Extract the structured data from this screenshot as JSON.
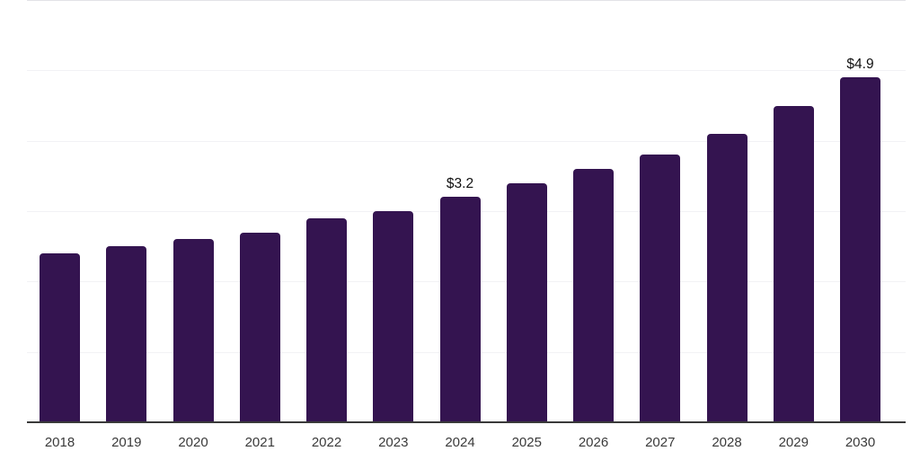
{
  "chart_data": {
    "type": "bar",
    "title": "",
    "xlabel": "",
    "ylabel": "",
    "categories": [
      "2018",
      "2019",
      "2020",
      "2021",
      "2022",
      "2023",
      "2024",
      "2025",
      "2026",
      "2027",
      "2028",
      "2029",
      "2030"
    ],
    "values": [
      2.4,
      2.5,
      2.6,
      2.7,
      2.9,
      3.0,
      3.2,
      3.4,
      3.6,
      3.8,
      4.1,
      4.5,
      4.9
    ],
    "bar_labels": {
      "2024": "$3.2",
      "2030": "$4.9"
    },
    "ylim": [
      0,
      6
    ],
    "gridline_values": [
      1,
      2,
      3,
      4,
      5,
      6
    ],
    "grid": "horizontal",
    "legend": "none",
    "colors": {
      "bar": "#341450",
      "axis_line": "#3a3a3a",
      "tick_label": "#3a3a3a",
      "value_label": "#111111",
      "gridline": "#f2f2f5",
      "background": "#ffffff"
    }
  }
}
